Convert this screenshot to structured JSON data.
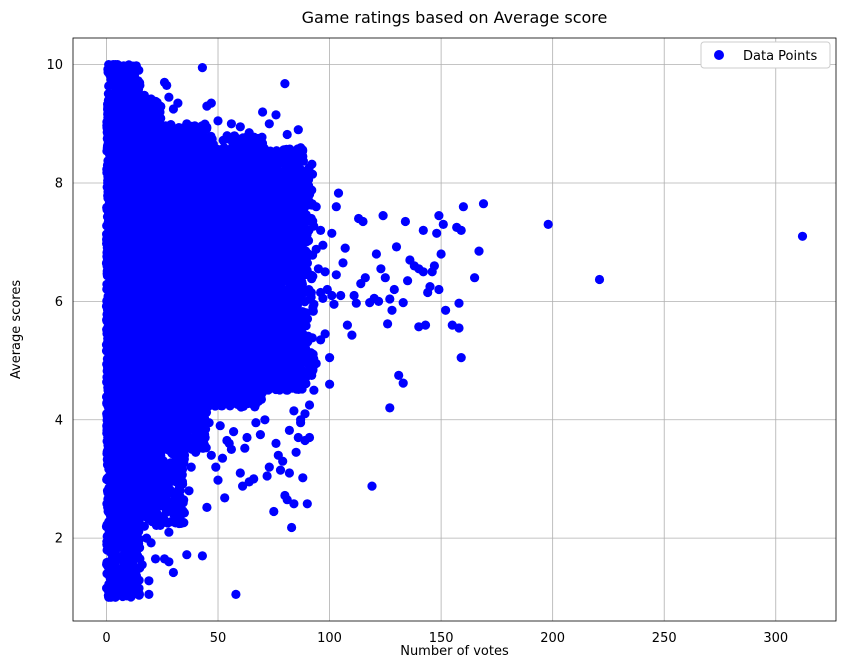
{
  "chart_data": {
    "type": "scatter",
    "title": "Game ratings based on Average score",
    "xlabel": "Number of votes",
    "ylabel": "Average scores",
    "xlim": [
      -15,
      327
    ],
    "ylim": [
      0.6,
      10.45
    ],
    "xticks": [
      0,
      50,
      100,
      150,
      200,
      250,
      300
    ],
    "yticks": [
      2,
      4,
      6,
      8,
      10
    ],
    "grid": true,
    "legend": {
      "placement": "top-right",
      "entries": [
        "Data Points"
      ]
    },
    "series": [
      {
        "name": "Data Points",
        "color": "#0000ff",
        "points": [
          [
            312,
            7.1
          ],
          [
            221,
            6.37
          ],
          [
            198,
            7.3
          ],
          [
            169,
            7.65
          ],
          [
            167,
            6.85
          ],
          [
            165,
            6.4
          ],
          [
            160,
            7.6
          ],
          [
            159,
            7.2
          ],
          [
            159,
            5.05
          ],
          [
            158,
            5.55
          ],
          [
            158,
            5.97
          ],
          [
            157,
            7.25
          ],
          [
            155,
            5.6
          ],
          [
            152,
            5.85
          ],
          [
            151,
            7.3
          ],
          [
            150,
            6.8
          ],
          [
            149,
            7.45
          ],
          [
            149,
            6.2
          ],
          [
            148,
            7.15
          ],
          [
            147,
            6.6
          ],
          [
            146,
            6.5
          ],
          [
            145,
            6.25
          ],
          [
            144,
            6.15
          ],
          [
            143,
            5.6
          ],
          [
            142,
            6.5
          ],
          [
            142,
            7.2
          ],
          [
            140,
            6.55
          ],
          [
            140,
            5.57
          ],
          [
            138,
            6.6
          ],
          [
            136,
            6.7
          ],
          [
            135,
            6.35
          ],
          [
            134,
            7.35
          ],
          [
            133,
            4.62
          ],
          [
            133,
            5.98
          ],
          [
            131,
            4.75
          ],
          [
            130,
            6.92
          ],
          [
            129,
            6.2
          ],
          [
            128,
            5.85
          ],
          [
            127,
            6.04
          ],
          [
            127,
            4.2
          ],
          [
            126,
            5.62
          ],
          [
            125,
            6.4
          ],
          [
            124,
            7.45
          ],
          [
            123,
            6.55
          ],
          [
            122,
            6.0
          ],
          [
            121,
            6.8
          ],
          [
            120,
            6.05
          ],
          [
            119,
            2.88
          ],
          [
            118,
            5.98
          ],
          [
            116,
            6.4
          ],
          [
            115,
            7.35
          ],
          [
            114,
            6.3
          ],
          [
            113,
            7.4
          ],
          [
            112,
            5.97
          ],
          [
            111,
            6.1
          ],
          [
            110,
            5.43
          ],
          [
            108,
            5.6
          ],
          [
            107,
            6.9
          ],
          [
            106,
            6.65
          ],
          [
            105,
            6.1
          ],
          [
            104,
            7.83
          ],
          [
            103,
            7.6
          ],
          [
            103,
            6.45
          ],
          [
            102,
            5.95
          ],
          [
            101,
            6.1
          ],
          [
            101,
            7.15
          ],
          [
            100,
            5.05
          ],
          [
            100,
            4.6
          ],
          [
            99,
            6.2
          ],
          [
            98,
            5.45
          ],
          [
            97,
            6.05
          ],
          [
            96,
            6.15
          ],
          [
            95,
            6.55
          ],
          [
            94,
            6.88
          ],
          [
            93,
            5.95
          ],
          [
            92,
            4.75
          ],
          [
            91,
            3.7
          ],
          [
            90,
            2.58
          ],
          [
            89,
            3.65
          ],
          [
            88,
            3.02
          ],
          [
            87,
            4.0
          ],
          [
            86,
            4.55
          ],
          [
            85,
            3.45
          ],
          [
            84,
            2.58
          ],
          [
            83,
            2.18
          ],
          [
            82,
            3.1
          ],
          [
            81,
            2.65
          ],
          [
            80,
            2.72
          ],
          [
            79,
            3.3
          ],
          [
            78,
            3.15
          ],
          [
            77,
            3.4
          ],
          [
            76,
            3.6
          ],
          [
            75,
            2.45
          ],
          [
            73,
            3.2
          ],
          [
            72,
            3.05
          ],
          [
            71,
            4.0
          ],
          [
            69,
            3.75
          ],
          [
            67,
            3.95
          ],
          [
            66,
            3.0
          ],
          [
            64,
            2.95
          ],
          [
            63,
            3.7
          ],
          [
            62,
            3.52
          ],
          [
            61,
            2.88
          ],
          [
            60,
            3.1
          ],
          [
            58,
            1.05
          ],
          [
            57,
            3.8
          ],
          [
            56,
            3.5
          ],
          [
            55,
            3.6
          ],
          [
            54,
            3.65
          ],
          [
            53,
            2.68
          ],
          [
            52,
            3.35
          ],
          [
            51,
            3.9
          ],
          [
            50,
            2.98
          ],
          [
            49,
            3.2
          ],
          [
            47,
            3.4
          ],
          [
            46,
            3.95
          ],
          [
            45,
            2.52
          ],
          [
            44,
            3.75
          ],
          [
            43,
            1.7
          ],
          [
            42,
            3.9
          ],
          [
            41,
            3.6
          ],
          [
            40,
            3.45
          ],
          [
            38,
            3.2
          ],
          [
            37,
            2.8
          ],
          [
            36,
            1.72
          ],
          [
            35,
            3.4
          ],
          [
            34,
            2.62
          ],
          [
            33,
            2.8
          ],
          [
            32,
            3.05
          ],
          [
            31,
            2.35
          ],
          [
            30,
            1.42
          ],
          [
            29,
            2.55
          ],
          [
            28,
            2.1
          ],
          [
            28,
            1.6
          ],
          [
            27,
            2.55
          ],
          [
            26,
            1.65
          ],
          [
            25,
            2.95
          ],
          [
            24,
            2.6
          ],
          [
            23,
            2.4
          ],
          [
            22,
            1.65
          ],
          [
            21,
            2.82
          ],
          [
            20,
            1.92
          ],
          [
            19,
            1.28
          ],
          [
            19,
            1.05
          ],
          [
            18,
            2.0
          ],
          [
            17,
            2.2
          ],
          [
            16,
            1.55
          ],
          [
            15,
            1.65
          ],
          [
            14,
            2.4
          ],
          [
            13,
            2.15
          ],
          [
            12,
            1.55
          ],
          [
            11,
            2.35
          ],
          [
            10,
            1.9
          ],
          [
            9,
            1.45
          ],
          [
            8,
            1.6
          ],
          [
            7,
            1.12
          ],
          [
            6,
            1.85
          ],
          [
            5,
            1.4
          ],
          [
            4,
            1.35
          ],
          [
            3,
            1.22
          ],
          [
            2,
            1.0
          ],
          [
            1,
            1.0
          ],
          [
            4,
            1.0
          ],
          [
            1,
            1.5
          ],
          [
            2,
            1.75
          ],
          [
            3,
            2.0
          ],
          [
            1,
            2.0
          ],
          [
            2,
            2.5
          ],
          [
            1,
            3.0
          ],
          [
            2,
            3.0
          ],
          [
            1,
            4.0
          ],
          [
            1,
            5.0
          ],
          [
            1,
            6.0
          ],
          [
            1,
            7.0
          ],
          [
            1,
            8.0
          ],
          [
            1,
            9.0
          ],
          [
            1,
            10.0
          ],
          [
            3,
            10.0
          ],
          [
            4,
            10.0
          ],
          [
            5,
            10.0
          ],
          [
            2,
            9.75
          ],
          [
            3,
            9.5
          ],
          [
            5,
            9.35
          ],
          [
            7,
            9.55
          ],
          [
            9,
            9.6
          ],
          [
            11,
            9.45
          ],
          [
            13,
            9.7
          ],
          [
            15,
            9.65
          ],
          [
            17,
            9.48
          ],
          [
            20,
            9.42
          ],
          [
            22,
            9.38
          ],
          [
            24,
            9.2
          ],
          [
            26,
            9.7
          ],
          [
            27,
            9.65
          ],
          [
            28,
            9.45
          ],
          [
            30,
            9.25
          ],
          [
            32,
            9.35
          ],
          [
            36,
            9.0
          ],
          [
            40,
            8.9
          ],
          [
            43,
            9.95
          ],
          [
            45,
            9.3
          ],
          [
            47,
            9.35
          ],
          [
            50,
            9.05
          ],
          [
            56,
            9.0
          ],
          [
            60,
            8.95
          ],
          [
            64,
            8.85
          ],
          [
            70,
            9.2
          ],
          [
            73,
            9.0
          ],
          [
            76,
            9.15
          ],
          [
            80,
            9.68
          ],
          [
            81,
            8.82
          ],
          [
            86,
            8.9
          ],
          [
            88,
            8.45
          ],
          [
            90,
            8.15
          ],
          [
            92,
            7.88
          ],
          [
            94,
            7.6
          ],
          [
            96,
            7.2
          ],
          [
            97,
            6.95
          ],
          [
            98,
            6.5
          ],
          [
            96,
            5.35
          ],
          [
            94,
            4.95
          ],
          [
            93,
            4.5
          ],
          [
            91,
            4.25
          ],
          [
            89,
            4.1
          ],
          [
            87,
            3.95
          ],
          [
            86,
            3.7
          ],
          [
            84,
            4.15
          ],
          [
            82,
            3.82
          ]
        ],
        "dense_regions": [
          {
            "x": [
              0,
              15
            ],
            "y": [
              1.0,
              10.0
            ],
            "n": 1500
          },
          {
            "x": [
              0,
              25
            ],
            "y": [
              2.5,
              9.4
            ],
            "n": 1800
          },
          {
            "x": [
              5,
              45
            ],
            "y": [
              3.5,
              9.0
            ],
            "n": 2600
          },
          {
            "x": [
              20,
              70
            ],
            "y": [
              4.2,
              8.8
            ],
            "n": 2800
          },
          {
            "x": [
              45,
              88
            ],
            "y": [
              4.5,
              8.6
            ],
            "n": 2000
          },
          {
            "x": [
              70,
              93
            ],
            "y": [
              4.6,
              8.4
            ],
            "n": 500
          },
          {
            "x": [
              5,
              35
            ],
            "y": [
              2.2,
              4.2
            ],
            "n": 400
          }
        ]
      }
    ]
  }
}
